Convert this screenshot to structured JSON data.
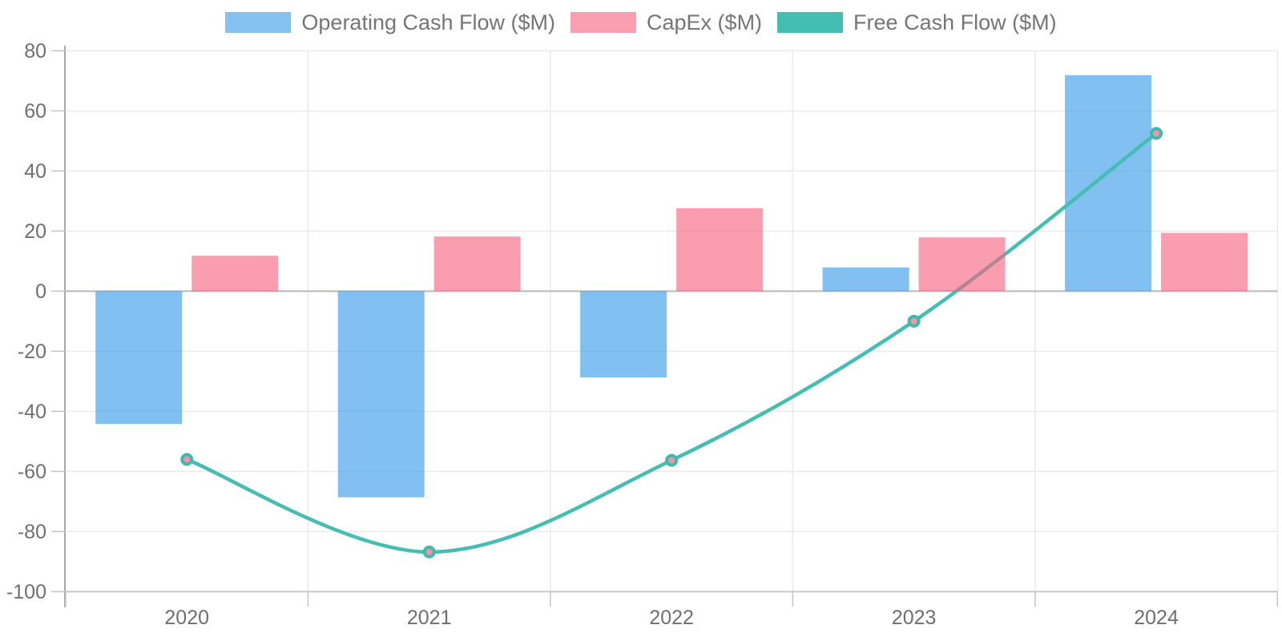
{
  "chart_data": {
    "type": "bar",
    "subtype": "combo-bar-line",
    "title": "",
    "xlabel": "",
    "ylabel": "",
    "categories": [
      "2020",
      "2021",
      "2022",
      "2023",
      "2024"
    ],
    "series": [
      {
        "name": "Operating Cash Flow ($M)",
        "type": "bar",
        "values": [
          -44.2,
          -68.6,
          -28.7,
          7.9,
          71.9
        ]
      },
      {
        "name": "CapEx ($M)",
        "type": "bar",
        "values": [
          11.8,
          18.2,
          27.6,
          17.9,
          19.4
        ]
      },
      {
        "name": "Free Cash Flow ($M)",
        "type": "line",
        "values": [
          -56.0,
          -86.8,
          -56.3,
          -10.0,
          52.5
        ]
      }
    ],
    "ylim": [
      -100,
      80
    ],
    "y_ticks": [
      80,
      60,
      40,
      20,
      0,
      -20,
      -40,
      -60,
      -80,
      -100
    ],
    "grid": true,
    "legend_position": "top"
  },
  "colors": {
    "operating_swatch": "#85C2F0",
    "operating_fill": "rgba(66,160,233,0.66)",
    "capex_swatch": "#F99FB1",
    "capex_fill": "rgba(247,97,126,0.62)",
    "fcf_line": "#44BDB3",
    "fcf_point_ring": "#3FB9AF",
    "fcf_point_fill": "#EE96A1",
    "gridline": "#EAEAEA",
    "zero_line": "#B9B9B9",
    "axis_line": "#A9A9A9",
    "tick_mark": "#C4C4C4",
    "bottom_border": "#C9C9C9",
    "tick_text": "#6F6F6F",
    "legend_text": "#757575",
    "background": "#FFFFFF"
  }
}
